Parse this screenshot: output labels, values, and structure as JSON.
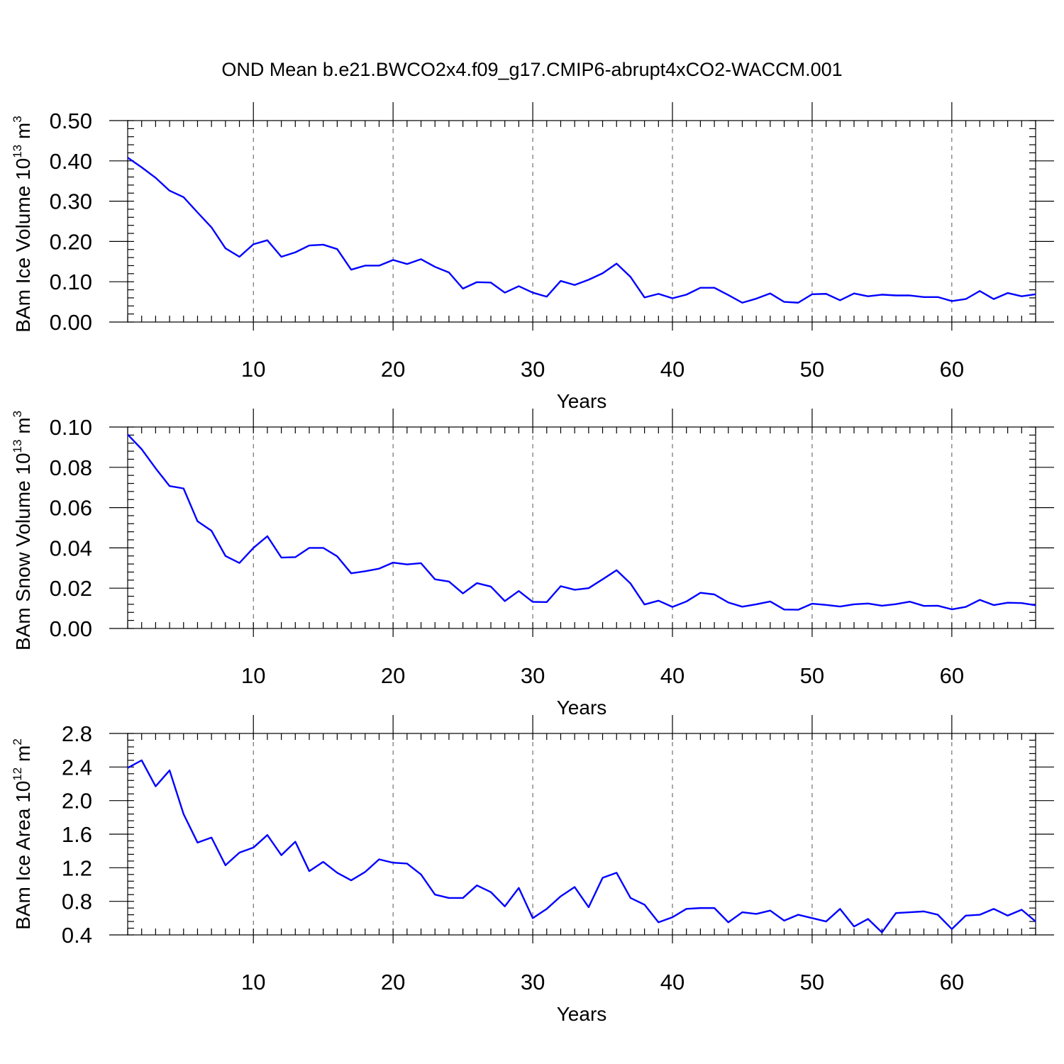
{
  "title": "OND Mean b.e21.BWCO2x4.f09_g17.CMIP6-abrupt4xCO2-WACCM.001",
  "chart_data": [
    {
      "type": "line",
      "ylabel": "BAm Ice Volume 10",
      "ylabel_exp": "13",
      "ylabel_unit": " m",
      "ylabel_unit_exp": "3",
      "xlabel": "Years",
      "xlim": [
        1,
        66
      ],
      "ylim": [
        0,
        0.5
      ],
      "yticks": [
        0,
        0.1,
        0.2,
        0.3,
        0.4,
        0.5
      ],
      "yticklabels": [
        "0.00",
        "0.10",
        "0.20",
        "0.30",
        "0.40",
        "0.50"
      ],
      "yminor": 0.02,
      "xticks": [
        10,
        20,
        30,
        40,
        50,
        60
      ],
      "xticklabels": [
        "10",
        "20",
        "30",
        "40",
        "50",
        "60"
      ],
      "grid_x": true,
      "color": "#0000ff",
      "x_start": 1,
      "values": [
        0.408,
        0.384,
        0.358,
        0.326,
        0.31,
        0.272,
        0.235,
        0.183,
        0.162,
        0.193,
        0.203,
        0.162,
        0.173,
        0.19,
        0.192,
        0.181,
        0.13,
        0.14,
        0.14,
        0.154,
        0.144,
        0.156,
        0.137,
        0.123,
        0.083,
        0.099,
        0.098,
        0.073,
        0.089,
        0.073,
        0.063,
        0.102,
        0.092,
        0.105,
        0.121,
        0.145,
        0.112,
        0.061,
        0.07,
        0.059,
        0.068,
        0.085,
        0.085,
        0.067,
        0.048,
        0.058,
        0.071,
        0.05,
        0.048,
        0.069,
        0.07,
        0.054,
        0.071,
        0.064,
        0.068,
        0.066,
        0.066,
        0.062,
        0.062,
        0.052,
        0.057,
        0.077,
        0.057,
        0.072,
        0.064,
        0.069
      ]
    },
    {
      "type": "line",
      "ylabel": "BAm Snow Volume 10",
      "ylabel_exp": "13",
      "ylabel_unit": " m",
      "ylabel_unit_exp": "3",
      "xlabel": "Years",
      "xlim": [
        1,
        66
      ],
      "ylim": [
        0,
        0.1
      ],
      "yticks": [
        0,
        0.02,
        0.04,
        0.06,
        0.08,
        0.1
      ],
      "yticklabels": [
        "0.00",
        "0.02",
        "0.04",
        "0.06",
        "0.08",
        "0.10"
      ],
      "yminor": 0.004,
      "xticks": [
        10,
        20,
        30,
        40,
        50,
        60
      ],
      "xticklabels": [
        "10",
        "20",
        "30",
        "40",
        "50",
        "60"
      ],
      "grid_x": true,
      "color": "#0000ff",
      "x_start": 1,
      "values": [
        0.0963,
        0.089,
        0.0795,
        0.0707,
        0.0695,
        0.0532,
        0.0485,
        0.036,
        0.0325,
        0.04,
        0.0458,
        0.0352,
        0.0354,
        0.04,
        0.04,
        0.0358,
        0.0274,
        0.0284,
        0.0297,
        0.0327,
        0.0318,
        0.0324,
        0.0244,
        0.0233,
        0.0174,
        0.0225,
        0.0208,
        0.0136,
        0.0186,
        0.0132,
        0.0131,
        0.021,
        0.0192,
        0.02,
        0.0244,
        0.0289,
        0.0223,
        0.0119,
        0.0138,
        0.0107,
        0.0134,
        0.0177,
        0.0169,
        0.0129,
        0.0108,
        0.012,
        0.0134,
        0.0094,
        0.0093,
        0.0123,
        0.0117,
        0.0109,
        0.012,
        0.0124,
        0.0113,
        0.0121,
        0.0133,
        0.0112,
        0.0113,
        0.0095,
        0.0107,
        0.0142,
        0.0116,
        0.0128,
        0.0126,
        0.0115
      ]
    },
    {
      "type": "line",
      "ylabel": "BAm Ice Area 10",
      "ylabel_exp": "12",
      "ylabel_unit": " m",
      "ylabel_unit_exp": "2",
      "xlabel": "Years",
      "xlim": [
        1,
        66
      ],
      "ylim": [
        0.4,
        2.8
      ],
      "yticks": [
        0.4,
        0.8,
        1.2,
        1.6,
        2.0,
        2.4,
        2.8
      ],
      "yticklabels": [
        "0.4",
        "0.8",
        "1.2",
        "1.6",
        "2.0",
        "2.4",
        "2.8"
      ],
      "yminor": 0.08,
      "xticks": [
        10,
        20,
        30,
        40,
        50,
        60
      ],
      "xticklabels": [
        "10",
        "20",
        "30",
        "40",
        "50",
        "60"
      ],
      "grid_x": true,
      "color": "#0000ff",
      "x_start": 1,
      "values": [
        2.39,
        2.48,
        2.17,
        2.36,
        1.84,
        1.5,
        1.56,
        1.23,
        1.38,
        1.44,
        1.59,
        1.35,
        1.51,
        1.16,
        1.27,
        1.14,
        1.05,
        1.15,
        1.3,
        1.26,
        1.25,
        1.12,
        0.88,
        0.84,
        0.84,
        0.99,
        0.91,
        0.74,
        0.96,
        0.6,
        0.71,
        0.86,
        0.97,
        0.73,
        1.08,
        1.14,
        0.84,
        0.76,
        0.55,
        0.61,
        0.71,
        0.72,
        0.72,
        0.55,
        0.67,
        0.65,
        0.69,
        0.57,
        0.64,
        0.6,
        0.56,
        0.71,
        0.5,
        0.59,
        0.43,
        0.66,
        0.67,
        0.68,
        0.64,
        0.47,
        0.63,
        0.64,
        0.71,
        0.63,
        0.7,
        0.56
      ]
    }
  ]
}
